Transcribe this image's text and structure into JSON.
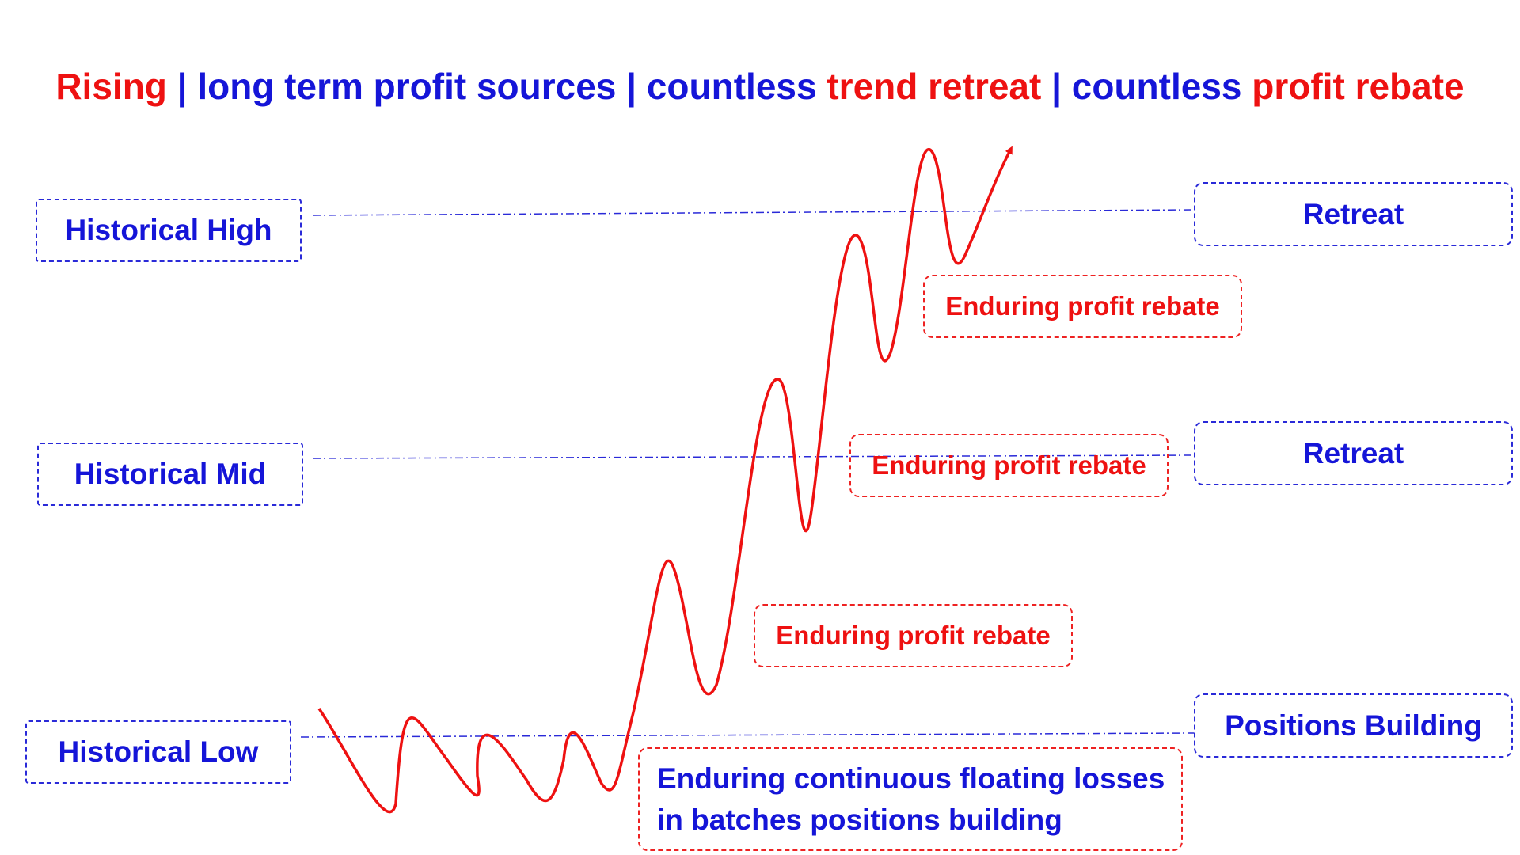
{
  "title": {
    "part1": "Rising",
    "sep1": " | ",
    "part2": "long term profit sources",
    "sep2": " | ",
    "part3": "countless ",
    "part4": "trend retreat",
    "sep3": " | ",
    "part5": "countless ",
    "part6": "profit rebate"
  },
  "left_labels": {
    "high": "Historical High",
    "mid": "Historical Mid",
    "low": "Historical Low"
  },
  "right_labels": {
    "high": "Retreat",
    "mid": "Retreat",
    "low": "Positions Building"
  },
  "rebate_labels": {
    "upper": "Enduring profit rebate",
    "middle": "Enduring profit rebate",
    "lower": "Enduring profit rebate"
  },
  "building_note": {
    "line1": "Enduring continuous floating losses",
    "line2": "in batches positions building"
  },
  "colors": {
    "accent_red": "#ee1111",
    "accent_blue": "#1515d8"
  }
}
